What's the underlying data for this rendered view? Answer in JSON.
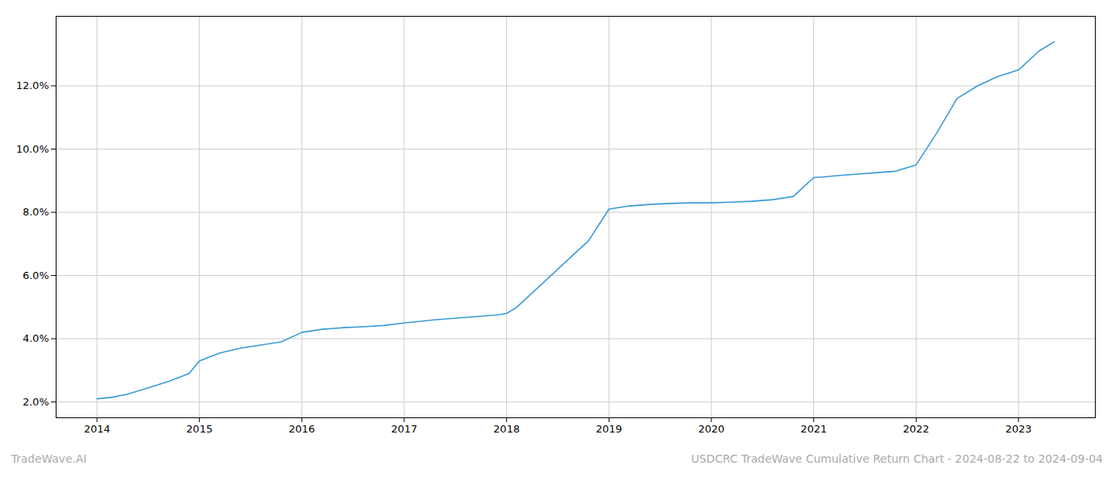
{
  "chart_data": {
    "type": "line",
    "title": "USDCRC TradeWave Cumulative Return Chart - 2024-08-22 to 2024-09-04",
    "annotations": [
      "TradeWave.AI"
    ],
    "color": "#3a9ad9",
    "x": [
      2014.0,
      2014.15,
      2014.3,
      2014.5,
      2014.7,
      2014.9,
      2015.0,
      2015.2,
      2015.4,
      2015.6,
      2015.8,
      2016.0,
      2016.2,
      2016.4,
      2016.6,
      2016.8,
      2017.0,
      2017.15,
      2017.3,
      2017.5,
      2017.7,
      2017.9,
      2018.0,
      2018.1,
      2018.2,
      2018.4,
      2018.6,
      2018.8,
      2019.0,
      2019.1,
      2019.2,
      2019.4,
      2019.6,
      2019.8,
      2020.0,
      2020.2,
      2020.4,
      2020.6,
      2020.8,
      2021.0,
      2021.1,
      2021.2,
      2021.4,
      2021.6,
      2021.8,
      2022.0,
      2022.2,
      2022.4,
      2022.6,
      2022.8,
      2023.0,
      2023.2,
      2023.35
    ],
    "values": [
      2.1,
      2.15,
      2.25,
      2.45,
      2.65,
      2.9,
      3.3,
      3.55,
      3.7,
      3.8,
      3.9,
      4.2,
      4.3,
      4.35,
      4.38,
      4.42,
      4.5,
      4.55,
      4.6,
      4.65,
      4.7,
      4.75,
      4.8,
      5.0,
      5.3,
      5.9,
      6.5,
      7.1,
      8.1,
      8.15,
      8.2,
      8.25,
      8.28,
      8.3,
      8.3,
      8.32,
      8.35,
      8.4,
      8.5,
      9.1,
      9.12,
      9.15,
      9.2,
      9.25,
      9.3,
      9.5,
      10.5,
      11.6,
      12.0,
      12.3,
      12.5,
      13.1,
      13.4
    ],
    "xlim": [
      2013.6,
      2023.75
    ],
    "ylim": [
      1.5,
      14.2
    ],
    "xticks": [
      2014,
      2015,
      2016,
      2017,
      2018,
      2019,
      2020,
      2021,
      2022,
      2023
    ],
    "yticks": [
      {
        "value": 2.0,
        "label": "2.0%"
      },
      {
        "value": 4.0,
        "label": "4.0%"
      },
      {
        "value": 6.0,
        "label": "6.0%"
      },
      {
        "value": 8.0,
        "label": "8.0%"
      },
      {
        "value": 10.0,
        "label": "10.0%"
      },
      {
        "value": 12.0,
        "label": "12.0%"
      }
    ],
    "grid": true
  }
}
